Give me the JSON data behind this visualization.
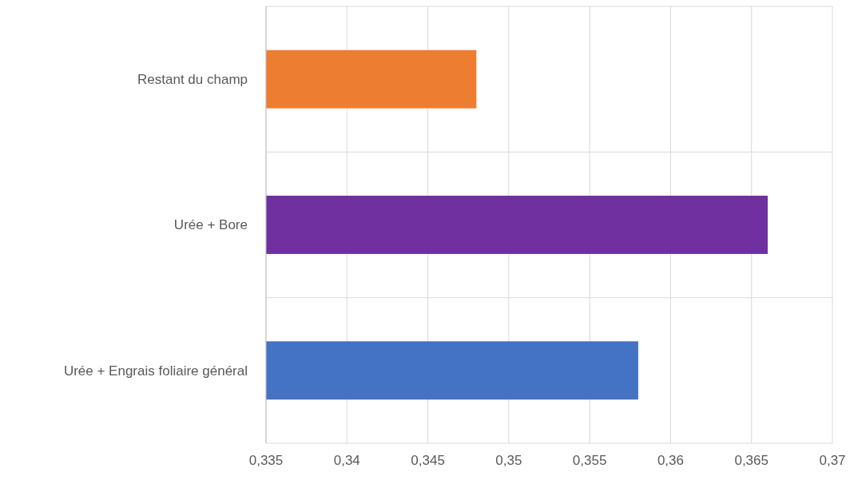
{
  "chart_data": {
    "type": "bar",
    "orientation": "horizontal",
    "categories": [
      "Restant du champ",
      "Urée + Bore",
      "Urée + Engrais foliaire général"
    ],
    "values": [
      0.348,
      0.366,
      0.358
    ],
    "colors": [
      "#ed7d31",
      "#7030a0",
      "#4472c4"
    ],
    "xlim": [
      0.335,
      0.37
    ],
    "xticks": [
      {
        "value": 0.335,
        "label": "0,335"
      },
      {
        "value": 0.34,
        "label": "0,34"
      },
      {
        "value": 0.345,
        "label": "0,345"
      },
      {
        "value": 0.35,
        "label": "0,35"
      },
      {
        "value": 0.355,
        "label": "0,355"
      },
      {
        "value": 0.36,
        "label": "0,36"
      },
      {
        "value": 0.365,
        "label": "0,365"
      },
      {
        "value": 0.37,
        "label": "0,37"
      }
    ],
    "grid": true
  }
}
